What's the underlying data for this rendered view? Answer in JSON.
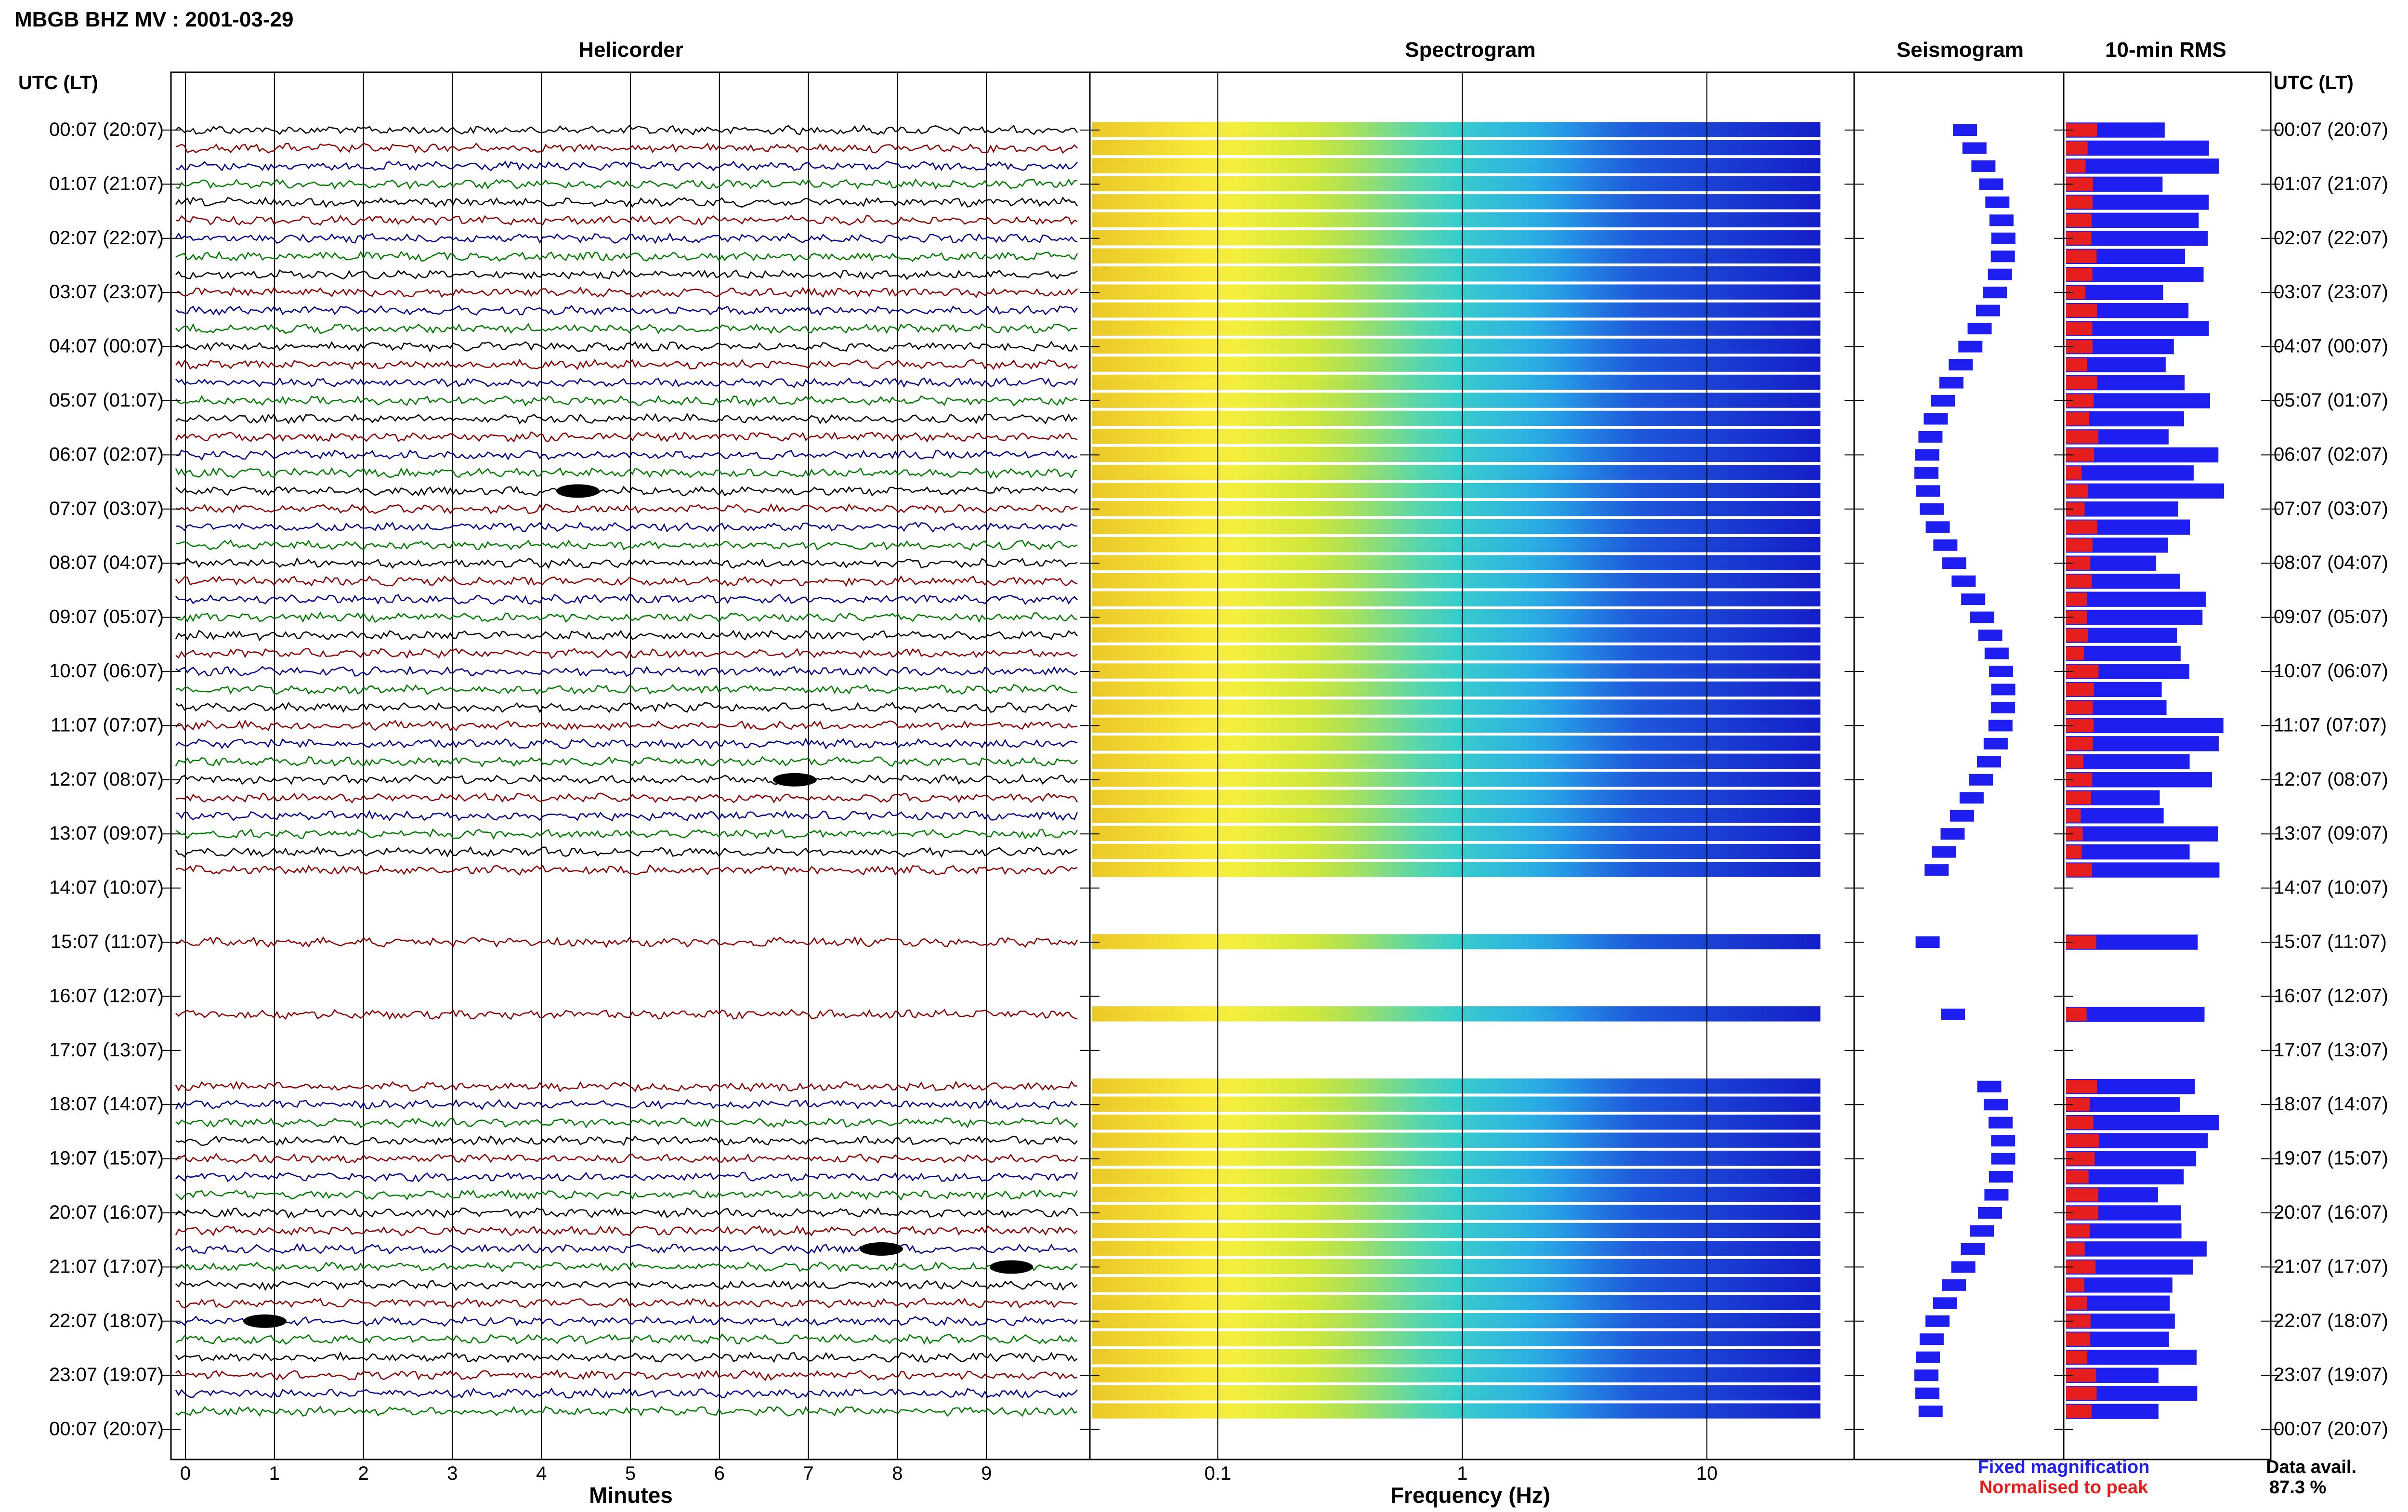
{
  "header": {
    "station_title": "MBGB BHZ MV : 2001-03-29",
    "utc_lt_left": "UTC (LT)",
    "utc_lt_right": "UTC (LT)"
  },
  "panels": {
    "helicorder": "Helicorder",
    "spectrogram": "Spectrogram",
    "seismogram": "Seismogram",
    "rms": "10-min RMS"
  },
  "time_labels": [
    "00:07 (20:07)",
    "01:07 (21:07)",
    "02:07 (22:07)",
    "03:07 (23:07)",
    "04:07 (00:07)",
    "05:07 (01:07)",
    "06:07 (02:07)",
    "07:07 (03:07)",
    "08:07 (04:07)",
    "09:07 (05:07)",
    "10:07 (06:07)",
    "11:07 (07:07)",
    "12:07 (08:07)",
    "13:07 (09:07)",
    "14:07 (10:07)",
    "15:07 (11:07)",
    "16:07 (12:07)",
    "17:07 (13:07)",
    "18:07 (14:07)",
    "19:07 (15:07)",
    "20:07 (16:07)",
    "21:07 (17:07)",
    "22:07 (18:07)",
    "23:07 (19:07)",
    "00:07 (20:07)"
  ],
  "legend": {
    "fixed": "Fixed magnification",
    "normalised": "Normalised to peak",
    "fixed_color": "#1e1ef0",
    "normalised_color": "#e61e1e"
  },
  "data_avail": {
    "label": "Data avail.",
    "value": "87.3 %"
  },
  "chart_data": [
    {
      "type": "line",
      "panel": "Helicorder",
      "xlabel": "Minutes",
      "x_ticks": [
        "0",
        "1",
        "2",
        "3",
        "4",
        "5",
        "6",
        "7",
        "8",
        "9"
      ],
      "xlim": [
        0,
        10
      ],
      "trace_colors": [
        "#000000",
        "#8b0000",
        "#00008b",
        "#007a00"
      ],
      "gaps_utc": [
        "14:17-15:07",
        "15:27-16:37",
        "16:57-17:57"
      ]
    },
    {
      "type": "heatmap",
      "panel": "Spectrogram",
      "xlabel": "Frequency (Hz)",
      "x_scale": "log",
      "x_ticks": [
        "0.1",
        "1",
        "10"
      ],
      "xlim": [
        0.03,
        40
      ]
    },
    {
      "type": "scatter",
      "panel": "Seismogram"
    },
    {
      "type": "bar",
      "panel": "10-min RMS",
      "orientation": "horizontal",
      "series": [
        {
          "name": "Fixed magnification",
          "color": "#1e1ef0"
        },
        {
          "name": "Normalised to peak",
          "color": "#e61e1e"
        }
      ]
    }
  ]
}
